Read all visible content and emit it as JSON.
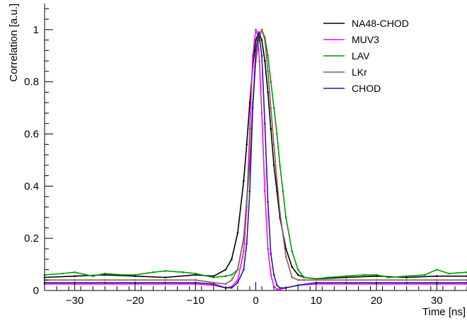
{
  "chart_data": {
    "type": "line",
    "title": "",
    "xlabel": "Time [ns]",
    "ylabel": "Correlation [a.u.]",
    "xlim": [
      -35,
      35
    ],
    "ylim": [
      0,
      1.1
    ],
    "x_ticks": [
      -30,
      -20,
      -10,
      0,
      10,
      20,
      30
    ],
    "x_tick_labels": [
      "−30",
      "−20",
      "−10",
      "0",
      "10",
      "20",
      "30"
    ],
    "y_ticks": [
      0,
      0.2,
      0.4,
      0.6,
      0.8,
      1
    ],
    "y_tick_labels": [
      "0",
      "0.2",
      "0.4",
      "0.6",
      "0.8",
      "1"
    ],
    "grid": false,
    "legend_position": "top-right",
    "series": [
      {
        "name": "NA48-CHOD",
        "color": "#000000",
        "x": [
          -35,
          -30,
          -25,
          -20,
          -15,
          -10,
          -7,
          -5,
          -4,
          -3,
          -2,
          -1.5,
          -1,
          -0.5,
          0,
          0.5,
          1,
          1.5,
          2,
          2.5,
          3,
          3.5,
          4,
          5,
          6,
          7,
          8,
          10,
          15,
          20,
          25,
          30,
          35
        ],
        "y": [
          0.05,
          0.055,
          0.06,
          0.055,
          0.05,
          0.06,
          0.055,
          0.08,
          0.12,
          0.22,
          0.42,
          0.56,
          0.72,
          0.86,
          0.96,
          0.99,
          0.96,
          0.88,
          0.76,
          0.62,
          0.48,
          0.38,
          0.28,
          0.16,
          0.09,
          0.06,
          0.05,
          0.045,
          0.05,
          0.055,
          0.05,
          0.055,
          0.055
        ]
      },
      {
        "name": "MUV3",
        "color": "#ff00ff",
        "x": [
          -35,
          -30,
          -25,
          -20,
          -15,
          -10,
          -7,
          -5,
          -4,
          -3,
          -2,
          -1.5,
          -1,
          -0.5,
          0,
          0.3,
          0.6,
          1,
          1.5,
          2,
          2.5,
          3,
          3.5,
          4,
          5,
          7,
          10,
          15,
          20,
          25,
          30,
          35
        ],
        "y": [
          0.025,
          0.025,
          0.025,
          0.025,
          0.025,
          0.025,
          0.02,
          0.01,
          0.015,
          0.04,
          0.15,
          0.32,
          0.62,
          0.9,
          1.0,
          0.98,
          0.88,
          0.68,
          0.38,
          0.16,
          0.06,
          0.015,
          0.005,
          0.005,
          0.01,
          0.02,
          0.025,
          0.025,
          0.025,
          0.025,
          0.025,
          0.025
        ]
      },
      {
        "name": "LAV",
        "color": "#009900",
        "x": [
          -35,
          -32,
          -30,
          -27,
          -25,
          -22,
          -20,
          -17,
          -15,
          -12,
          -10,
          -7,
          -5,
          -4,
          -3,
          -2,
          -1,
          -0.5,
          0,
          0.5,
          1,
          1.5,
          2,
          2.5,
          3,
          3.5,
          4,
          4.5,
          5,
          6,
          7,
          8,
          10,
          12,
          15,
          18,
          20,
          22,
          25,
          28,
          30,
          32,
          35
        ],
        "y": [
          0.06,
          0.065,
          0.07,
          0.055,
          0.065,
          0.06,
          0.06,
          0.07,
          0.075,
          0.07,
          0.065,
          0.05,
          0.055,
          0.06,
          0.08,
          0.2,
          0.5,
          0.72,
          0.88,
          0.96,
          1.0,
          0.97,
          0.9,
          0.8,
          0.7,
          0.6,
          0.48,
          0.38,
          0.28,
          0.15,
          0.08,
          0.05,
          0.045,
          0.05,
          0.055,
          0.06,
          0.06,
          0.05,
          0.055,
          0.06,
          0.08,
          0.065,
          0.07
        ]
      },
      {
        "name": "LKr",
        "color": "#8b5a5a",
        "x": [
          -35,
          -30,
          -25,
          -20,
          -15,
          -10,
          -7,
          -5,
          -4,
          -3,
          -2,
          -1,
          -0.5,
          0,
          0.5,
          1,
          1.5,
          2,
          2.5,
          3,
          3.5,
          4,
          5,
          6,
          7,
          8,
          10,
          15,
          20,
          25,
          30,
          35
        ],
        "y": [
          0.04,
          0.04,
          0.04,
          0.04,
          0.04,
          0.04,
          0.03,
          0.025,
          0.04,
          0.08,
          0.2,
          0.48,
          0.7,
          0.88,
          0.97,
          1.0,
          0.96,
          0.84,
          0.7,
          0.56,
          0.42,
          0.3,
          0.13,
          0.05,
          0.04,
          0.04,
          0.04,
          0.04,
          0.04,
          0.04,
          0.04,
          0.04
        ]
      },
      {
        "name": "CHOD",
        "color": "#1f1f8f",
        "x": [
          -35,
          -30,
          -25,
          -20,
          -15,
          -10,
          -7,
          -5,
          -4,
          -3,
          -2,
          -1.5,
          -1,
          -0.5,
          0,
          0.5,
          1,
          1.5,
          2,
          2.5,
          3,
          3.5,
          4,
          5,
          7,
          10,
          15,
          20,
          25,
          30,
          35
        ],
        "y": [
          0.03,
          0.03,
          0.03,
          0.03,
          0.03,
          0.03,
          0.025,
          0.01,
          0.01,
          0.03,
          0.08,
          0.18,
          0.38,
          0.7,
          0.92,
          0.99,
          0.9,
          0.64,
          0.34,
          0.14,
          0.06,
          0.02,
          0.01,
          0.01,
          0.02,
          0.03,
          0.03,
          0.03,
          0.03,
          0.03,
          0.03
        ]
      }
    ]
  }
}
